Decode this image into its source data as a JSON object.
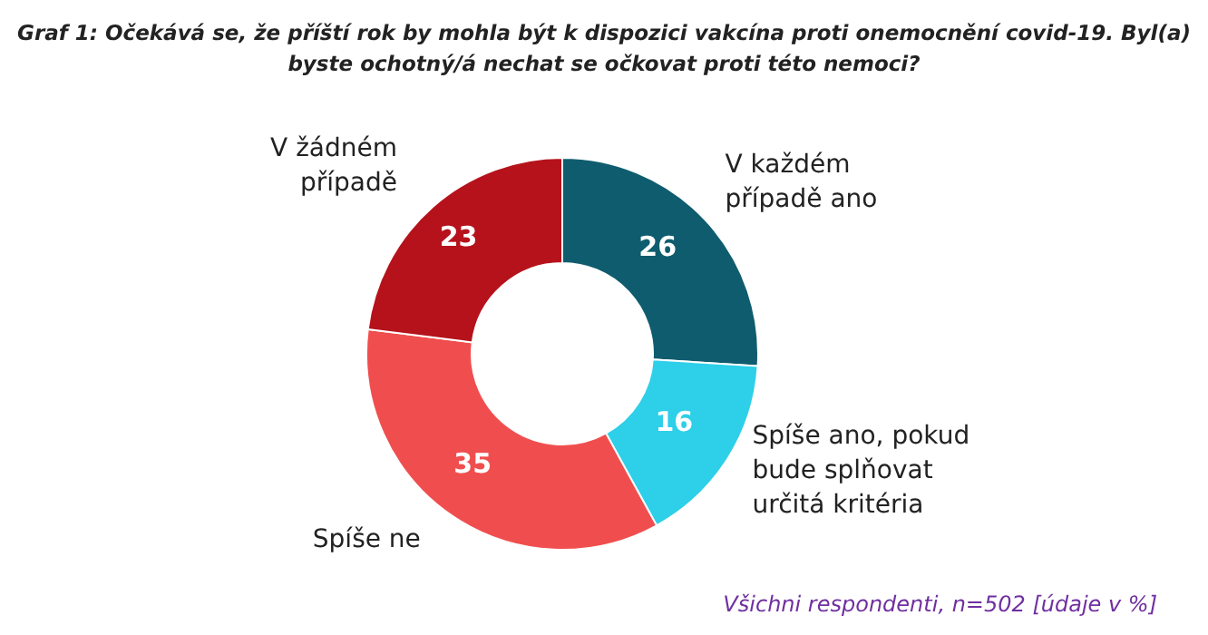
{
  "chart_data": {
    "type": "donut",
    "title": "Graf 1: Očekává se, že příští rok by mohla být k dispozici vakcína proti onemocnění covid-19. Byl(a) byste ochotný/á nechat se očkovat proti této nemoci?",
    "categories": [
      "V každém případě ano",
      "Spíše ano, pokud bude splňovat určitá kritéria",
      "Spíše ne",
      "V žádném případě"
    ],
    "values": [
      26,
      16,
      35,
      23
    ],
    "colors": [
      "#0f5c6e",
      "#2ecfe8",
      "#f04e4e",
      "#b5121b"
    ],
    "data_labels": true,
    "annotations": [
      "Všichni respondenti, n=502 [údaje v %]"
    ]
  }
}
